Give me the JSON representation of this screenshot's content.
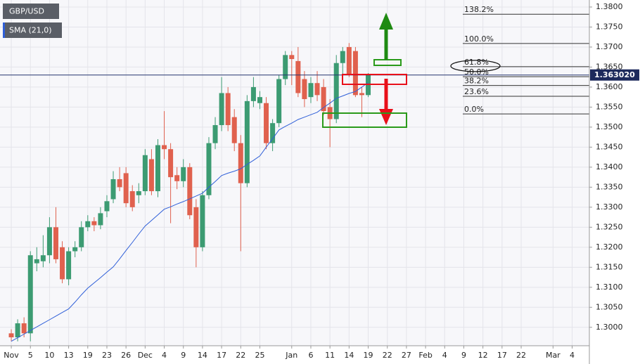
{
  "chart_data": {
    "type": "candlestick",
    "symbol": "GBP/USD",
    "up_color": "#3c9b72",
    "down_color": "#e0614e",
    "x": [
      0,
      1,
      2,
      3,
      4,
      5,
      6,
      7,
      8,
      9,
      10,
      11,
      12,
      13,
      14,
      15,
      16,
      17,
      18,
      19,
      20,
      21,
      22,
      23,
      24,
      25,
      26,
      27,
      28,
      29,
      30,
      31,
      32,
      33,
      34,
      35,
      36,
      37,
      38,
      39,
      40,
      41,
      42,
      43,
      44,
      45,
      46,
      47,
      48,
      49,
      50,
      51,
      52,
      53,
      54,
      55,
      56
    ],
    "open": [
      1.2985,
      1.2975,
      1.301,
      1.2985,
      1.316,
      1.3165,
      1.318,
      1.325,
      1.32,
      1.312,
      1.319,
      1.32,
      1.325,
      1.3265,
      1.3255,
      1.329,
      1.332,
      1.337,
      1.3385,
      1.334,
      1.333,
      1.334,
      1.342,
      1.334,
      1.3455,
      1.3445,
      1.338,
      1.3365,
      1.34,
      1.33,
      1.32,
      1.333,
      1.346,
      1.3505,
      1.3585,
      1.3525,
      1.346,
      1.336,
      1.3565,
      1.356,
      1.356,
      1.346,
      1.351,
      1.362,
      1.368,
      1.3665,
      1.362,
      1.3575,
      1.361,
      1.36,
      1.355,
      1.352,
      1.366,
      1.37,
      1.369,
      1.3585,
      1.358
    ],
    "high": [
      1.2995,
      1.302,
      1.3025,
      1.319,
      1.32,
      1.323,
      1.3275,
      1.33,
      1.3215,
      1.32,
      1.3215,
      1.3265,
      1.328,
      1.3275,
      1.33,
      1.333,
      1.339,
      1.34,
      1.34,
      1.3355,
      1.336,
      1.3445,
      1.3445,
      1.347,
      1.354,
      1.346,
      1.34,
      1.342,
      1.341,
      1.332,
      1.334,
      1.3475,
      1.3525,
      1.3625,
      1.36,
      1.3545,
      1.348,
      1.358,
      1.3625,
      1.359,
      1.3575,
      1.352,
      1.363,
      1.369,
      1.369,
      1.37,
      1.364,
      1.3625,
      1.364,
      1.362,
      1.357,
      1.368,
      1.37,
      1.371,
      1.37,
      1.36,
      1.3635
    ],
    "low": [
      1.2965,
      1.2965,
      1.2975,
      1.2965,
      1.314,
      1.315,
      1.316,
      1.316,
      1.311,
      1.3105,
      1.3175,
      1.319,
      1.324,
      1.324,
      1.3245,
      1.3275,
      1.331,
      1.334,
      1.33,
      1.329,
      1.331,
      1.333,
      1.333,
      1.3325,
      1.342,
      1.326,
      1.3345,
      1.335,
      1.327,
      1.315,
      1.319,
      1.332,
      1.3445,
      1.349,
      1.349,
      1.344,
      1.319,
      1.335,
      1.355,
      1.3545,
      1.3445,
      1.344,
      1.35,
      1.3605,
      1.3605,
      1.3575,
      1.355,
      1.356,
      1.3565,
      1.353,
      1.345,
      1.351,
      1.361,
      1.3625,
      1.3575,
      1.3525,
      1.3575
    ],
    "close": [
      1.2975,
      1.301,
      1.2985,
      1.318,
      1.317,
      1.318,
      1.325,
      1.317,
      1.312,
      1.319,
      1.32,
      1.325,
      1.3265,
      1.3255,
      1.3285,
      1.3315,
      1.337,
      1.335,
      1.331,
      1.33,
      1.334,
      1.343,
      1.334,
      1.3455,
      1.3445,
      1.3375,
      1.3365,
      1.34,
      1.328,
      1.32,
      1.333,
      1.346,
      1.3505,
      1.3585,
      1.3505,
      1.346,
      1.336,
      1.3565,
      1.36,
      1.3575,
      1.346,
      1.351,
      1.362,
      1.368,
      1.367,
      1.3585,
      1.357,
      1.361,
      1.358,
      1.354,
      1.352,
      1.366,
      1.369,
      1.363,
      1.358,
      1.358,
      1.363
    ],
    "sma": {
      "name": "SMA (21,0)",
      "color": "#2f5fd8",
      "values": [
        1.2965,
        1.2974,
        1.2983,
        1.2992,
        1.3001,
        1.301,
        1.3019,
        1.3028,
        1.3037,
        1.3046,
        1.3063,
        1.3081,
        1.3098,
        1.3111,
        1.3124,
        1.3138,
        1.3151,
        1.3171,
        1.3192,
        1.3212,
        1.3233,
        1.3253,
        1.3267,
        1.3281,
        1.3295,
        1.3301,
        1.3308,
        1.3314,
        1.3321,
        1.3328,
        1.3335,
        1.335,
        1.3364,
        1.3379,
        1.3385,
        1.339,
        1.3396,
        1.3407,
        1.3417,
        1.3428,
        1.345,
        1.3471,
        1.3493,
        1.3502,
        1.351,
        1.3519,
        1.3525,
        1.3531,
        1.3537,
        1.3549,
        1.356,
        1.3572,
        1.3578,
        1.3584,
        1.3589,
        1.36,
        1.3611
      ]
    },
    "last_price": {
      "value": 1.36302,
      "label": "1.363020"
    },
    "fib_levels": [
      {
        "value": 1.3782,
        "label": "138.2%"
      },
      {
        "value": 1.3709,
        "label": "100.0%"
      },
      {
        "value": 1.3651,
        "label": "61.8%"
      },
      {
        "value": 1.3626,
        "label": "50.0%"
      },
      {
        "value": 1.3604,
        "label": "38.2%"
      },
      {
        "value": 1.3577,
        "label": "23.6%"
      },
      {
        "value": 1.3533,
        "label": "0.0%"
      }
    ],
    "xlim": [
      -1.77,
      90.7
    ],
    "ylim": [
      1.2954,
      1.38175
    ],
    "grid": true,
    "xticks": [
      {
        "value": 0,
        "label": "Nov"
      },
      {
        "value": 3,
        "label": "5"
      },
      {
        "value": 6,
        "label": "10"
      },
      {
        "value": 9,
        "label": "13"
      },
      {
        "value": 12,
        "label": "19"
      },
      {
        "value": 15,
        "label": "23"
      },
      {
        "value": 18,
        "label": "26"
      },
      {
        "value": 21,
        "label": "Dec"
      },
      {
        "value": 24,
        "label": "4"
      },
      {
        "value": 27,
        "label": "9"
      },
      {
        "value": 30,
        "label": "14"
      },
      {
        "value": 33,
        "label": "17"
      },
      {
        "value": 36,
        "label": "22"
      },
      {
        "value": 39,
        "label": "25"
      },
      {
        "value": 44,
        "label": "Jan"
      },
      {
        "value": 47,
        "label": "6"
      },
      {
        "value": 50,
        "label": "11"
      },
      {
        "value": 53,
        "label": "14"
      },
      {
        "value": 56,
        "label": "19"
      },
      {
        "value": 59,
        "label": "22"
      },
      {
        "value": 62,
        "label": "27"
      },
      {
        "value": 65,
        "label": "Feb"
      },
      {
        "value": 68,
        "label": "4"
      },
      {
        "value": 71,
        "label": "9"
      },
      {
        "value": 74,
        "label": "12"
      },
      {
        "value": 77,
        "label": "17"
      },
      {
        "value": 80,
        "label": "22"
      },
      {
        "value": 85,
        "label": "Mar"
      },
      {
        "value": 88,
        "label": "4"
      }
    ],
    "yticks": [
      {
        "value": 1.3,
        "label": "1.3000"
      },
      {
        "value": 1.305,
        "label": "1.3050"
      },
      {
        "value": 1.31,
        "label": "1.3100"
      },
      {
        "value": 1.315,
        "label": "1.3150"
      },
      {
        "value": 1.32,
        "label": "1.3200"
      },
      {
        "value": 1.325,
        "label": "1.3250"
      },
      {
        "value": 1.33,
        "label": "1.3300"
      },
      {
        "value": 1.335,
        "label": "1.3350"
      },
      {
        "value": 1.34,
        "label": "1.3400"
      },
      {
        "value": 1.345,
        "label": "1.3450"
      },
      {
        "value": 1.35,
        "label": "1.3500"
      },
      {
        "value": 1.355,
        "label": "1.3550"
      },
      {
        "value": 1.36,
        "label": "1.3600"
      },
      {
        "value": 1.365,
        "label": "1.3650"
      },
      {
        "value": 1.37,
        "label": "1.3700"
      },
      {
        "value": 1.375,
        "label": "1.3750"
      },
      {
        "value": 1.38,
        "label": "1.3800"
      }
    ]
  }
}
